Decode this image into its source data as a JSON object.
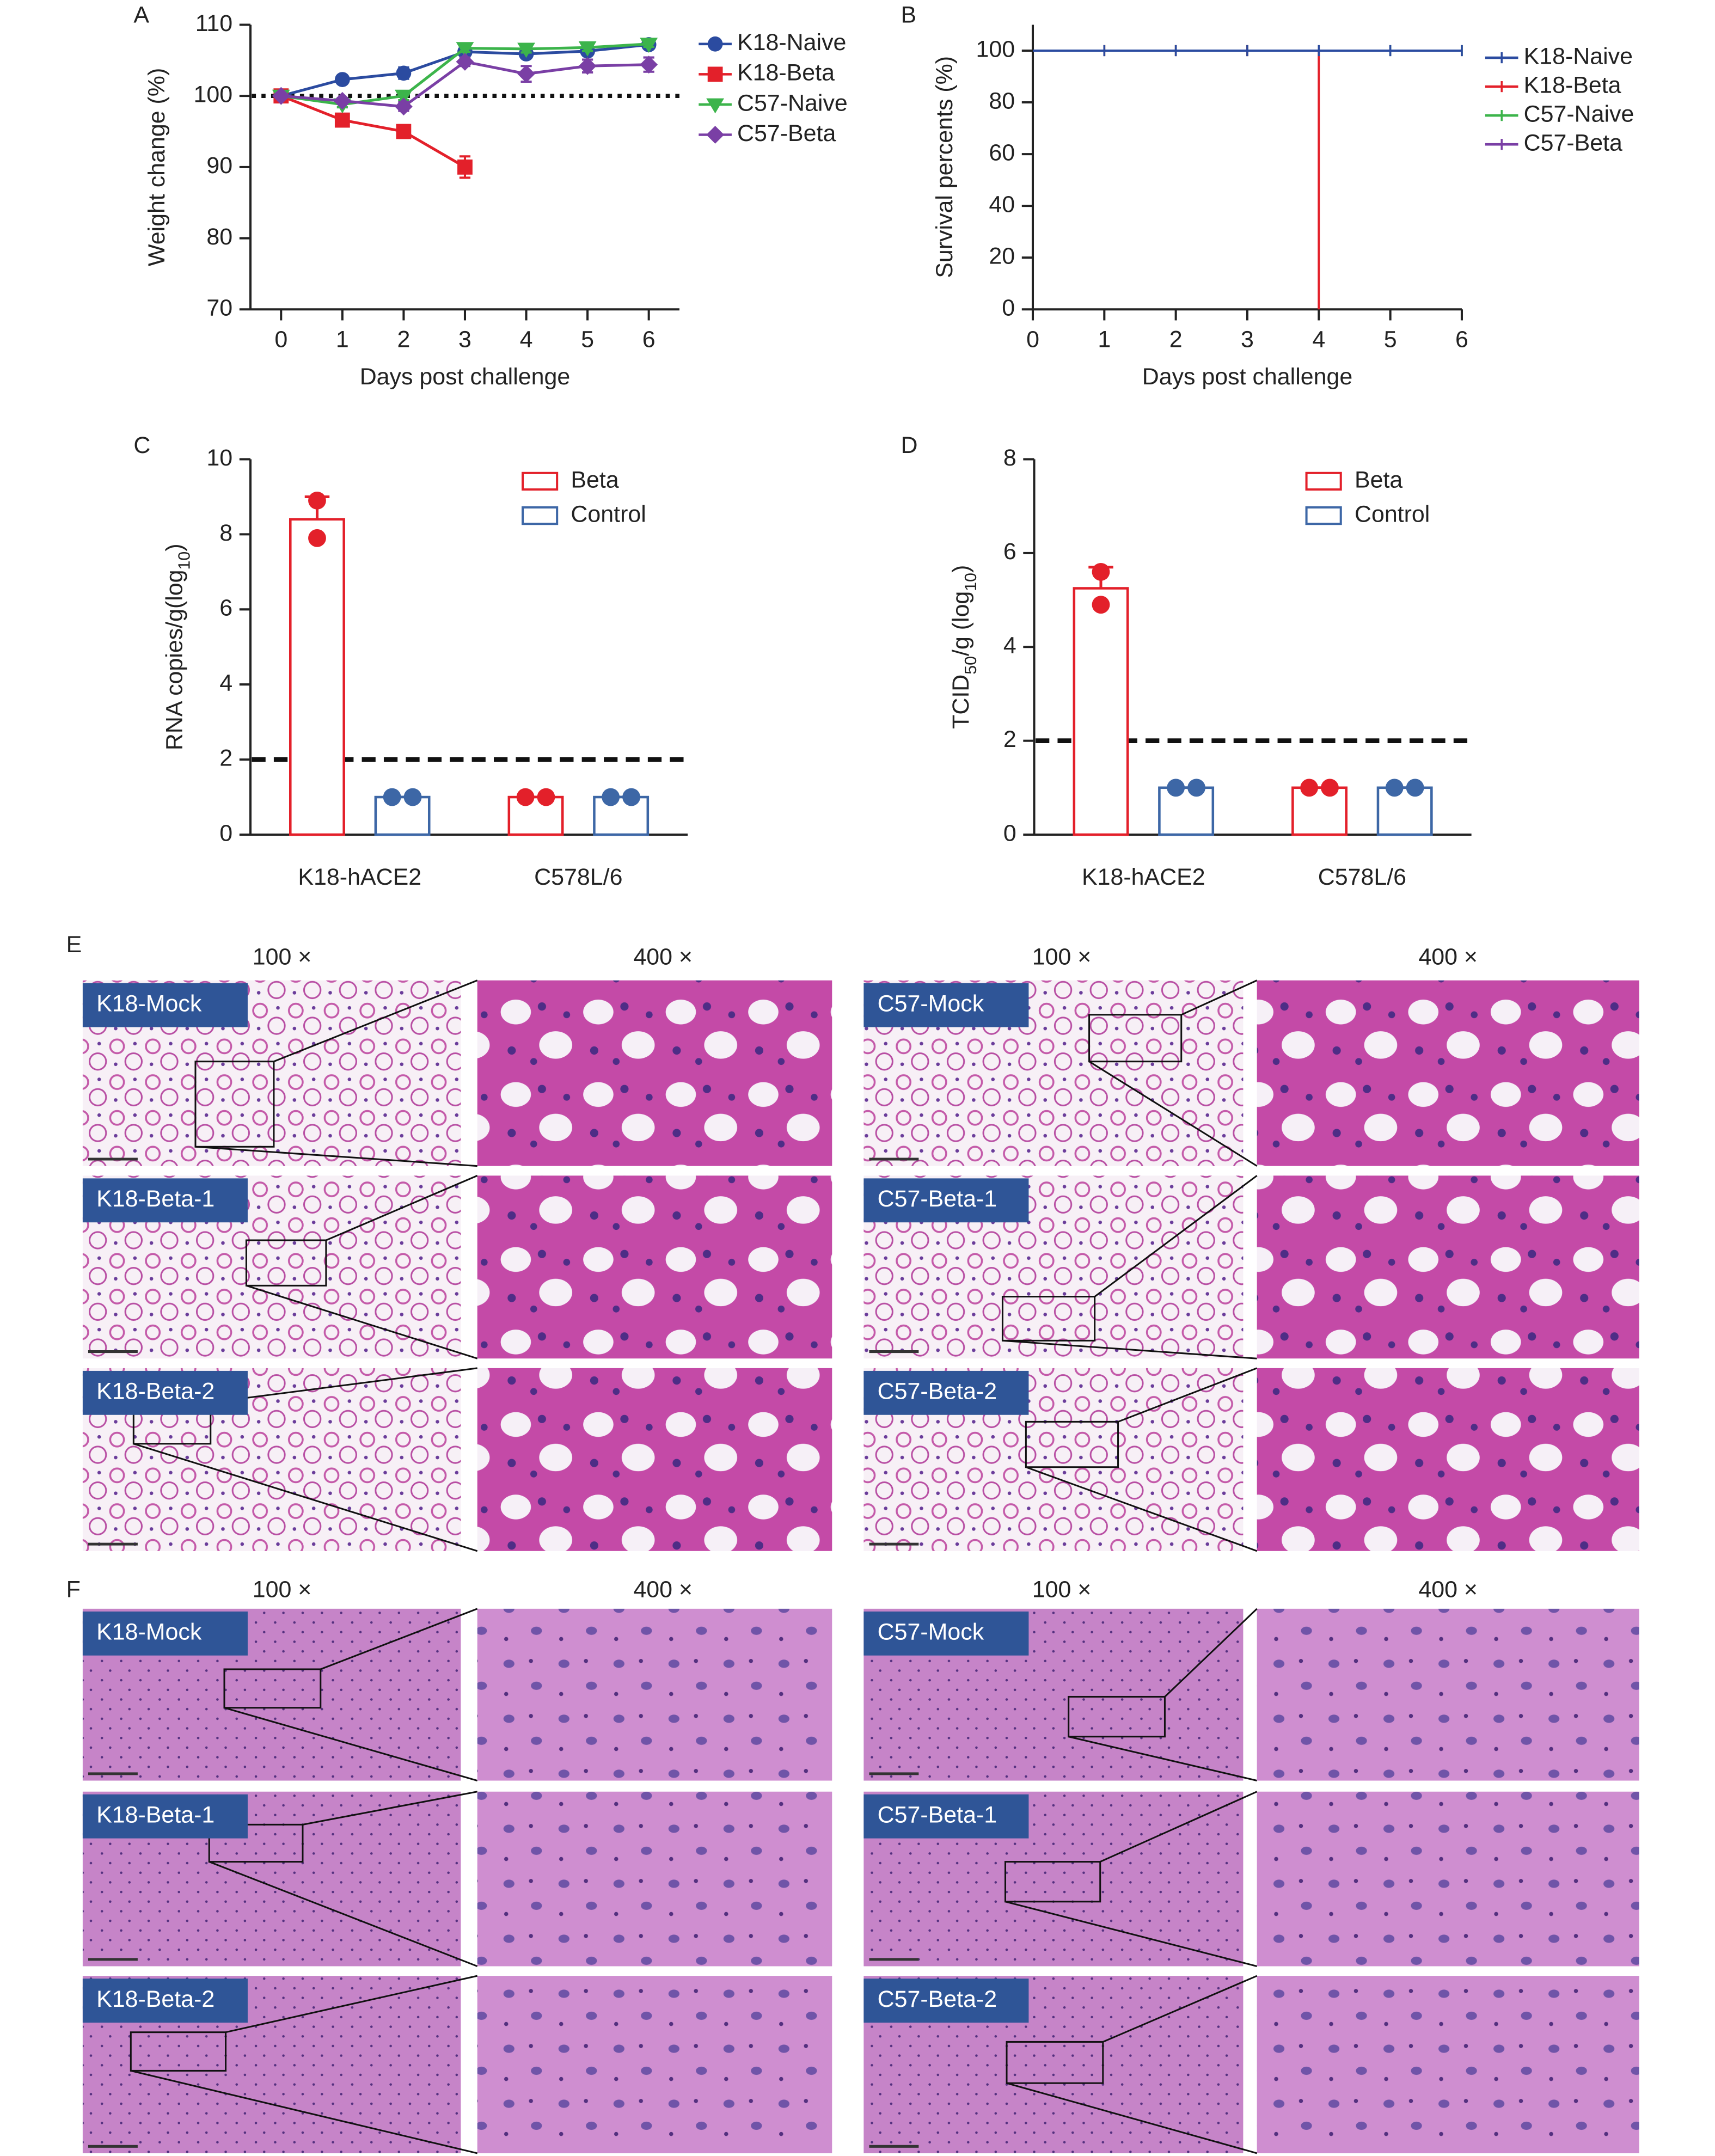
{
  "chart_data": [
    {
      "type": "line",
      "panel": "A",
      "x": [
        0,
        1,
        2,
        3,
        4,
        5,
        6
      ],
      "xlim": [
        -0.5,
        6.5
      ],
      "xticks": [
        0,
        1,
        2,
        3,
        4,
        5,
        6
      ],
      "ylim": [
        70,
        110
      ],
      "yticks": [
        70,
        80,
        90,
        100,
        110
      ],
      "xlabel": "Days post challenge",
      "ylabel": "Weight change (%)",
      "hline": 100,
      "hline_style": "dotted",
      "legend": "right",
      "series": [
        {
          "name": "K18-Naive",
          "color": "#2b4ba0",
          "marker": "circle",
          "values": [
            100,
            102.3,
            103.2,
            106.2,
            105.9,
            106.3,
            107.2
          ],
          "errors": [
            0.3,
            0.5,
            0.8,
            0.7,
            0.6,
            0.6,
            0.5
          ]
        },
        {
          "name": "K18-Beta",
          "color": "#e3202a",
          "marker": "square",
          "values": [
            100,
            96.6,
            95,
            90,
            null,
            null,
            null
          ],
          "errors": [
            0.3,
            0.6,
            0.9,
            1.5,
            null,
            null,
            null
          ]
        },
        {
          "name": "C57-Naive",
          "color": "#3cb44b",
          "marker": "triangle-down",
          "values": [
            100,
            98.8,
            100,
            106.7,
            106.6,
            106.8,
            107.3
          ],
          "errors": [
            0.3,
            0.4,
            0.6,
            0.5,
            0.5,
            0.5,
            0.4
          ]
        },
        {
          "name": "C57-Beta",
          "color": "#7a3fa5",
          "marker": "diamond",
          "values": [
            100,
            99.3,
            98.5,
            104.8,
            103.1,
            104.2,
            104.4
          ],
          "errors": [
            0.3,
            0.4,
            0.6,
            0.6,
            1.1,
            0.9,
            1.0
          ]
        }
      ]
    },
    {
      "type": "step",
      "panel": "B",
      "x": [
        0,
        1,
        2,
        3,
        4,
        5,
        6
      ],
      "xlim": [
        0,
        6
      ],
      "xticks": [
        0,
        1,
        2,
        3,
        4,
        5,
        6
      ],
      "ylim": [
        0,
        110
      ],
      "yticks": [
        0,
        20,
        40,
        60,
        80,
        100
      ],
      "xlabel": "Days post challenge",
      "ylabel": "Survival percents (%)",
      "legend": "right",
      "series": [
        {
          "name": "K18-Naive",
          "color": "#2b4ba0",
          "values": [
            100,
            100,
            100,
            100,
            100,
            100,
            100
          ]
        },
        {
          "name": "K18-Beta",
          "color": "#e3202a",
          "values": [
            100,
            100,
            100,
            100,
            0,
            null,
            null
          ]
        },
        {
          "name": "C57-Naive",
          "color": "#3cb44b",
          "values": [
            100,
            100,
            100,
            100,
            100,
            100,
            100
          ]
        },
        {
          "name": "C57-Beta",
          "color": "#7a3fa5",
          "values": [
            100,
            100,
            100,
            100,
            100,
            100,
            100
          ]
        }
      ]
    },
    {
      "type": "bar",
      "panel": "C",
      "categories": [
        "K18-hACE2",
        "C578L/6"
      ],
      "ylim": [
        0,
        10
      ],
      "yticks": [
        0,
        2,
        4,
        6,
        8,
        10
      ],
      "ylabel": [
        {
          "text": "RNA copies/g(log"
        },
        {
          "text": "10",
          "sub": true
        },
        {
          "text": ")"
        }
      ],
      "hline": 2,
      "hline_style": "dashed",
      "legend": "upper right",
      "series": [
        {
          "name": "Beta",
          "color": "#e3202a",
          "values": [
            8.4,
            1
          ],
          "errors": [
            0.6,
            0
          ],
          "points": [
            [
              8.9,
              7.9
            ],
            [
              1,
              1
            ]
          ]
        },
        {
          "name": "Control",
          "color": "#3d67a6",
          "values": [
            1,
            1
          ],
          "errors": [
            0,
            0
          ],
          "points": [
            [
              1,
              1
            ],
            [
              1,
              1
            ]
          ]
        }
      ]
    },
    {
      "type": "bar",
      "panel": "D",
      "categories": [
        "K18-hACE2",
        "C578L/6"
      ],
      "ylim": [
        0,
        8
      ],
      "yticks": [
        0,
        2,
        4,
        6,
        8
      ],
      "ylabel": [
        {
          "text": "TCID"
        },
        {
          "text": "50",
          "sub": true
        },
        {
          "text": "/g (log"
        },
        {
          "text": "10",
          "sub": true
        },
        {
          "text": ")"
        }
      ],
      "hline": 2,
      "hline_style": "dashed",
      "legend": "upper right",
      "series": [
        {
          "name": "Beta",
          "color": "#e3202a",
          "values": [
            5.25,
            1
          ],
          "errors": [
            0.45,
            0
          ],
          "points": [
            [
              5.6,
              4.9
            ],
            [
              1,
              1
            ]
          ]
        },
        {
          "name": "Control",
          "color": "#3d67a6",
          "values": [
            1,
            1
          ],
          "errors": [
            0,
            0
          ],
          "points": [
            [
              1,
              1
            ],
            [
              1,
              1
            ]
          ]
        }
      ]
    }
  ],
  "histology": [
    {
      "panel": "E",
      "magnifications": [
        "100 ×",
        "400 ×",
        "100 ×",
        "400 ×"
      ],
      "rows": [
        [
          "K18-Mock",
          "C57-Mock"
        ],
        [
          "K18-Beta-1",
          "C57-Beta-1"
        ],
        [
          "K18-Beta-2",
          "C57-Beta-2"
        ]
      ]
    },
    {
      "panel": "F",
      "magnifications": [
        "100 ×",
        "400 ×",
        "100 ×",
        "400 ×"
      ],
      "rows": [
        [
          "K18-Mock",
          "C57-Mock"
        ],
        [
          "K18-Beta-1",
          "C57-Beta-1"
        ],
        [
          "K18-Beta-2",
          "C57-Beta-2"
        ]
      ]
    }
  ]
}
